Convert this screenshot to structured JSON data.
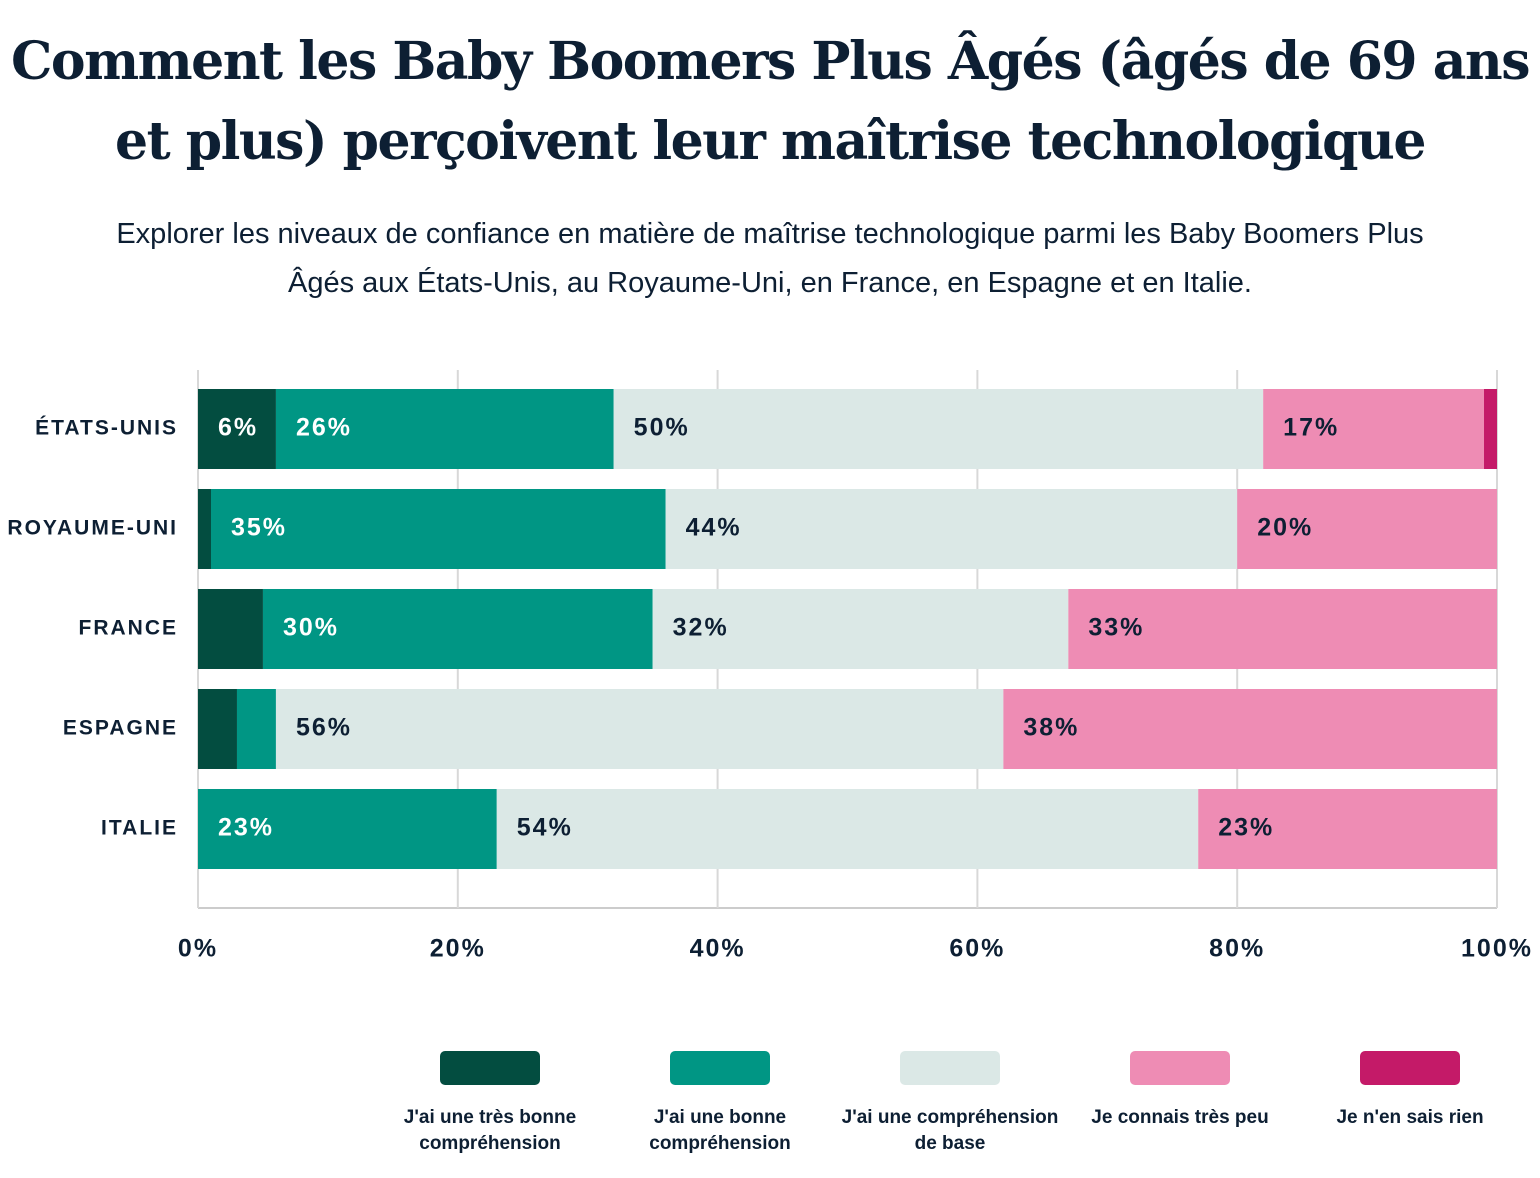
{
  "chart_data": {
    "type": "stacked-bar-horizontal",
    "title": "Comment les Baby Boomers Plus Âgés (âgés de 69 ans et plus) perçoivent leur maîtrise technologique",
    "subtitle": "Explorer les niveaux de confiance en matière de maîtrise technologique parmi les Baby Boomers Plus Âgés aux États-Unis, au Royaume-Uni, en France, en Espagne et en Italie.",
    "categories": [
      "ÉTATS-UNIS",
      "ROYAUME-UNI",
      "FRANCE",
      "ESPAGNE",
      "ITALIE"
    ],
    "series": [
      {
        "name": "J'ai une très bonne compréhension",
        "color": "#034d40",
        "values": [
          6,
          1,
          5,
          3,
          0
        ],
        "value_labels": [
          "6%",
          null,
          null,
          null,
          null
        ]
      },
      {
        "name": "J'ai une bonne compréhension",
        "color": "#009684",
        "values": [
          26,
          35,
          30,
          3,
          23
        ],
        "value_labels": [
          "26%",
          "35%",
          "30%",
          null,
          "23%"
        ]
      },
      {
        "name": "J'ai une compréhension de base",
        "color": "#dbe8e6",
        "values": [
          50,
          44,
          32,
          56,
          54
        ],
        "value_labels": [
          "50%",
          "44%",
          "32%",
          "56%",
          "54%"
        ]
      },
      {
        "name": "Je connais très peu",
        "color": "#ee8cb4",
        "values": [
          17,
          20,
          33,
          38,
          23
        ],
        "value_labels": [
          "17%",
          "20%",
          "33%",
          "38%",
          "23%"
        ]
      },
      {
        "name": "Je n'en sais rien",
        "color": "#c41a68",
        "values": [
          1,
          0,
          0,
          0,
          0
        ],
        "value_labels": [
          null,
          null,
          null,
          null,
          null
        ]
      }
    ],
    "xlim": [
      0,
      100
    ],
    "xticks": [
      {
        "value": 0,
        "label": "0%"
      },
      {
        "value": 20,
        "label": "20%"
      },
      {
        "value": 40,
        "label": "40%"
      },
      {
        "value": 60,
        "label": "60%"
      },
      {
        "value": 80,
        "label": "80%"
      },
      {
        "value": 100,
        "label": "100%"
      }
    ],
    "grid": true
  }
}
